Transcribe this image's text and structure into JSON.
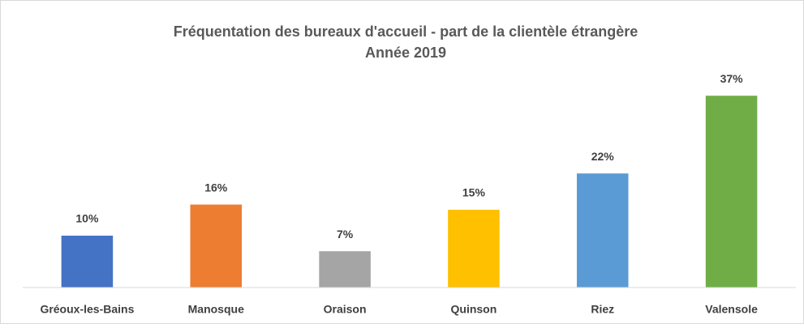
{
  "chart_data": {
    "type": "bar",
    "title": "Fréquentation des bureaux d'accueil - part de la clientèle étrangère",
    "subtitle": "Année 2019",
    "categories": [
      "Gréoux-les-Bains",
      "Manosque",
      "Oraison",
      "Quinson",
      "Riez",
      "Valensole"
    ],
    "values": [
      10,
      16,
      7,
      15,
      22,
      37
    ],
    "value_labels": [
      "10%",
      "16%",
      "7%",
      "15%",
      "22%",
      "37%"
    ],
    "colors": [
      "#4472c4",
      "#ed7d31",
      "#a5a5a5",
      "#ffc000",
      "#5b9bd5",
      "#70ad47"
    ],
    "ylim": [
      0,
      40
    ]
  }
}
